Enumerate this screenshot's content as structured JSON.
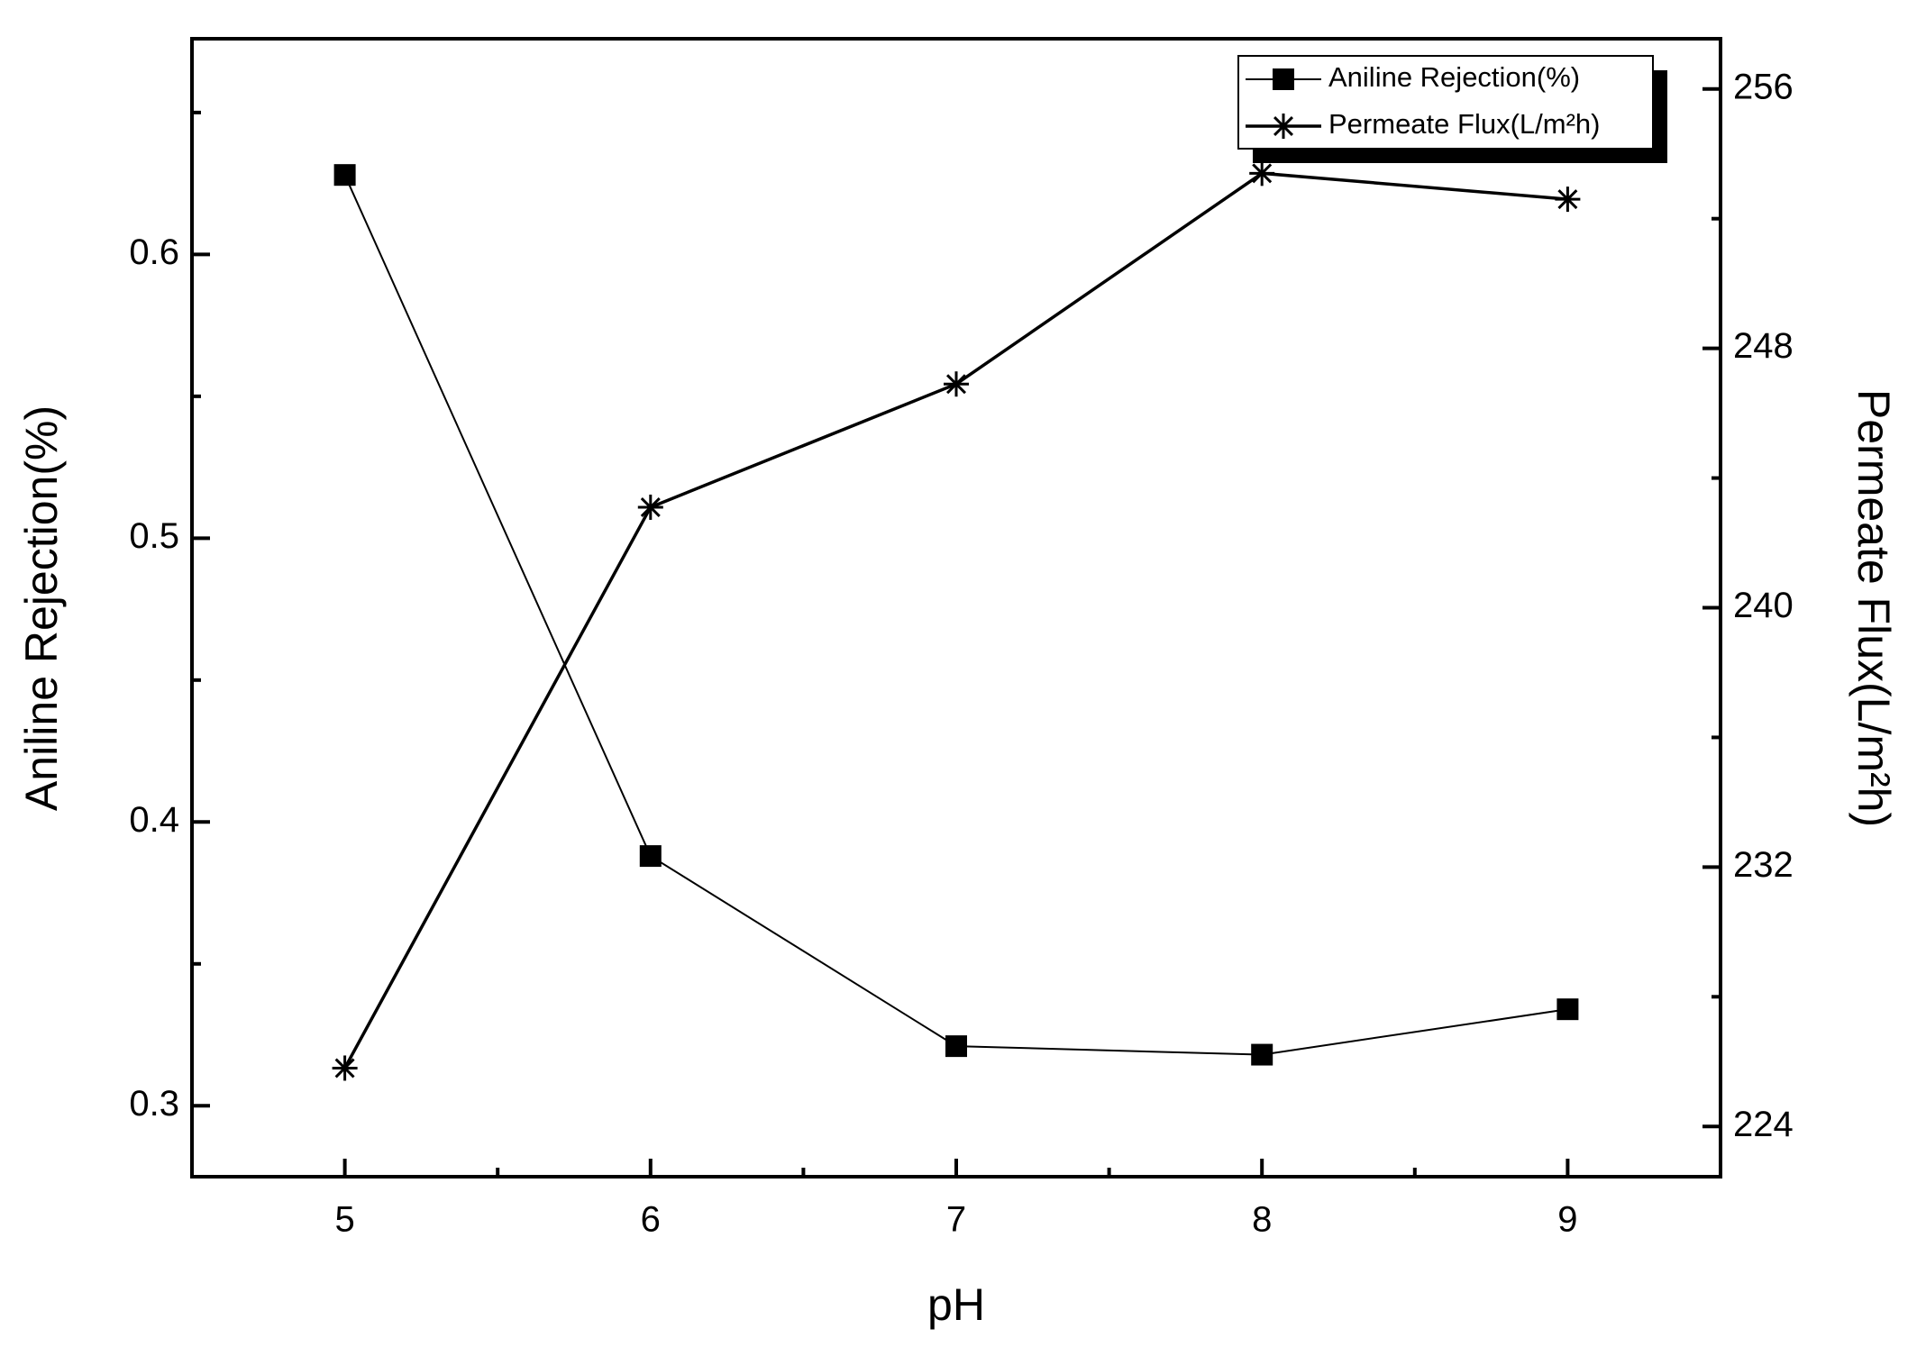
{
  "chart_data": {
    "type": "line",
    "x_label": "pH",
    "y_label": "Aniline Rejection(%)",
    "y2_label": "Permeate Flux(L/m²h)",
    "x": [
      5,
      6,
      7,
      8,
      9
    ],
    "xlim": [
      4.5,
      9.5
    ],
    "xticks": [
      5,
      6,
      7,
      8,
      9
    ],
    "xminor": [
      5.5,
      6.5,
      7.5,
      8.5
    ],
    "ylim": [
      0.275,
      0.676
    ],
    "yticks": [
      0.3,
      0.4,
      0.5,
      0.6
    ],
    "yminor": [
      0.35,
      0.45,
      0.55,
      0.65
    ],
    "y2lim": [
      222.45,
      257.55
    ],
    "y2ticks": [
      224,
      232,
      240,
      248,
      256
    ],
    "y2minor": [
      228,
      236,
      244,
      252
    ],
    "legend": "upper right",
    "series": [
      {
        "name": "Aniline Rejection(%)",
        "color": "#000000",
        "marker": "square",
        "axis": "y",
        "values": [
          0.628,
          0.388,
          0.321,
          0.318,
          0.334
        ]
      },
      {
        "name": "Permeate Flux(L/m²h)",
        "color": "#000000",
        "marker": "star",
        "axis": "y2",
        "values": [
          225.8,
          243.1,
          246.9,
          253.4,
          252.6
        ]
      }
    ]
  }
}
